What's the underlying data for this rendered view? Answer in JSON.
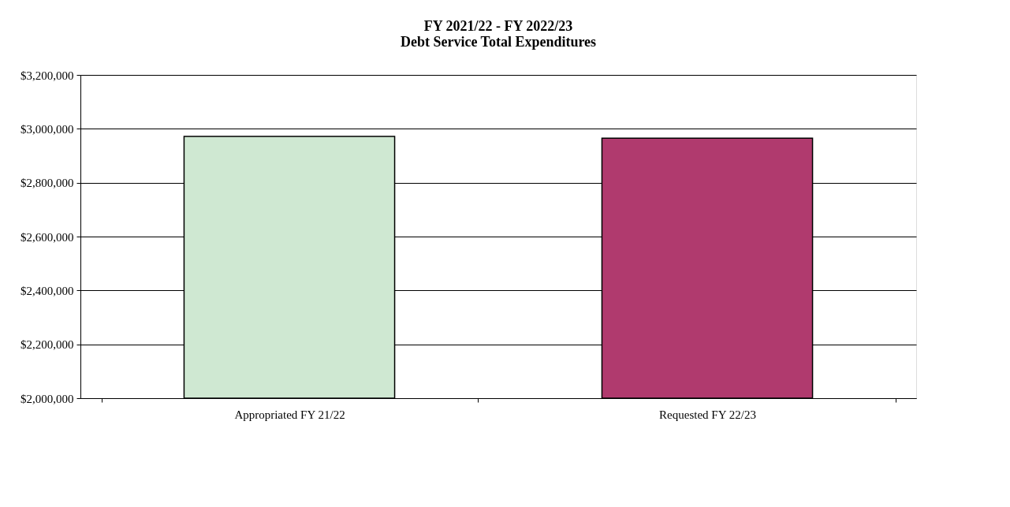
{
  "chart_data": {
    "type": "bar",
    "title": [
      "FY 2021/22 - FY 2022/23",
      "Debt Service Total Expenditures"
    ],
    "categories": [
      "Appropriated FY 21/22",
      "Requested FY 22/23"
    ],
    "values": [
      2972000,
      2965000
    ],
    "colors": [
      "#cfe8d2",
      "#b03a6e"
    ],
    "ylim": [
      2000000,
      3200000
    ],
    "yticks": [
      {
        "value": 2000000,
        "label": "$2,000,000"
      },
      {
        "value": 2200000,
        "label": "$2,200,000"
      },
      {
        "value": 2400000,
        "label": "$2,400,000"
      },
      {
        "value": 2600000,
        "label": "$2,600,000"
      },
      {
        "value": 2800000,
        "label": "$2,800,000"
      },
      {
        "value": 3000000,
        "label": "$3,000,000"
      },
      {
        "value": 3200000,
        "label": "$3,200,000"
      }
    ],
    "grid": "y"
  }
}
